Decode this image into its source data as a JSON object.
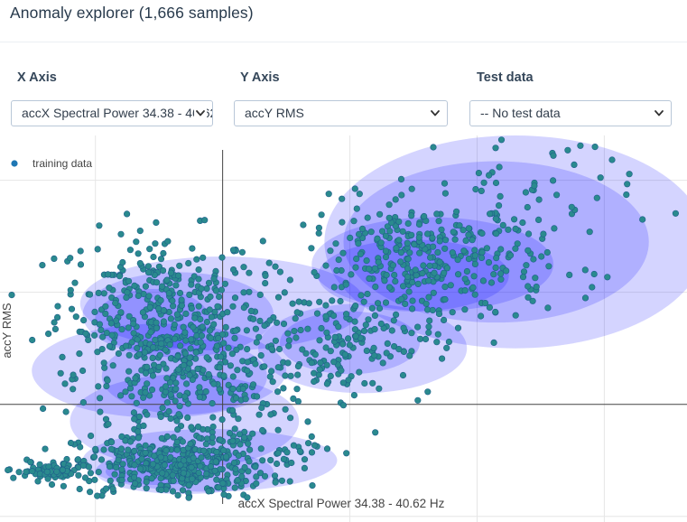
{
  "header": {
    "title": "Anomaly explorer (1,666 samples)"
  },
  "controls": {
    "x_axis": {
      "label": "X Axis",
      "value": "accX Spectral Power 34.38 - 40.62 Hz"
    },
    "y_axis": {
      "label": "Y Axis",
      "value": "accY RMS"
    },
    "test_data": {
      "label": "Test data",
      "value": "-- No test data"
    }
  },
  "icons": {
    "dropdown": "chevron-down-icon",
    "legend_marker": "dot-icon"
  },
  "colors": {
    "point_fill": "#2a8a8e",
    "point_stroke": "#1f5f8b",
    "ellipse_fill": "#0000ff",
    "legend_dot": "#1f77b4",
    "axis_line": "#444444",
    "grid": "#e6e6e6"
  },
  "chart_data": {
    "type": "scatter",
    "legend": {
      "entries": [
        "training data"
      ],
      "position": "top-left"
    },
    "xlabel": "accX Spectral Power 34.38 - 40.62 Hz",
    "ylabel": "accY RMS",
    "grid": true,
    "xlim": [
      -1.75,
      3.65
    ],
    "ylim": [
      -1.05,
      2.4
    ],
    "x_zero_line": 0,
    "y_zero_line": 0,
    "clusters": [
      {
        "cx": -0.5,
        "cy": 0.9,
        "sx": 0.4,
        "sy": 0.32,
        "n": 280
      },
      {
        "cx": -0.3,
        "cy": 0.25,
        "sx": 0.42,
        "sy": 0.32,
        "n": 340
      },
      {
        "cx": -0.4,
        "cy": -0.55,
        "sx": 0.38,
        "sy": 0.14,
        "n": 390
      },
      {
        "cx": 1.6,
        "cy": 1.25,
        "sx": 0.48,
        "sy": 0.28,
        "n": 330
      },
      {
        "cx": 0.9,
        "cy": 0.55,
        "sx": 0.38,
        "sy": 0.24,
        "n": 160
      },
      {
        "cx": 2.25,
        "cy": 1.85,
        "sx": 0.5,
        "sy": 0.35,
        "n": 60
      },
      {
        "cx": -1.35,
        "cy": -0.6,
        "sx": 0.18,
        "sy": 0.04,
        "n": 60
      },
      {
        "cx": 0.3,
        "cy": -0.35,
        "sx": 0.3,
        "sy": 0.2,
        "n": 46
      }
    ],
    "outliers": [
      {
        "x": 2.6,
        "y": 2.22
      },
      {
        "x": 2.45,
        "y": 1.95
      },
      {
        "x": 3.3,
        "y": 1.65
      },
      {
        "x": 2.85,
        "y": 1.2
      },
      {
        "x": -1.1,
        "y": 0.3
      },
      {
        "x": -0.75,
        "y": 1.0
      },
      {
        "x": 1.2,
        "y": -0.25
      },
      {
        "x": 2.1,
        "y": 1.7
      }
    ],
    "gmm_components": [
      {
        "cx": 2.3,
        "cy": 1.45,
        "rx": 1.5,
        "ry": 0.95
      },
      {
        "cx": 2.15,
        "cy": 1.45,
        "rx": 1.2,
        "ry": 0.72
      },
      {
        "cx": 1.65,
        "cy": 1.25,
        "rx": 0.95,
        "ry": 0.42
      },
      {
        "cx": 1.5,
        "cy": 1.15,
        "rx": 0.75,
        "ry": 0.32
      },
      {
        "cx": 1.1,
        "cy": 0.5,
        "rx": 0.82,
        "ry": 0.4
      },
      {
        "cx": 1.0,
        "cy": 0.55,
        "rx": 0.55,
        "ry": 0.28
      },
      {
        "cx": 0.0,
        "cy": 0.9,
        "rx": 1.12,
        "ry": 0.42
      },
      {
        "cx": -0.35,
        "cy": 0.8,
        "rx": 0.75,
        "ry": 0.38
      },
      {
        "cx": -0.55,
        "cy": 0.75,
        "rx": 0.45,
        "ry": 0.28
      },
      {
        "cx": -0.5,
        "cy": 0.3,
        "rx": 1.0,
        "ry": 0.42
      },
      {
        "cx": -0.3,
        "cy": 0.25,
        "rx": 0.65,
        "ry": 0.34
      },
      {
        "cx": -0.3,
        "cy": -0.15,
        "rx": 0.9,
        "ry": 0.42
      },
      {
        "cx": -0.1,
        "cy": -0.5,
        "rx": 1.0,
        "ry": 0.28
      },
      {
        "cx": -0.3,
        "cy": -0.6,
        "rx": 0.7,
        "ry": 0.2
      },
      {
        "cx": -0.5,
        "cy": -0.6,
        "rx": 0.42,
        "ry": 0.12
      }
    ]
  }
}
